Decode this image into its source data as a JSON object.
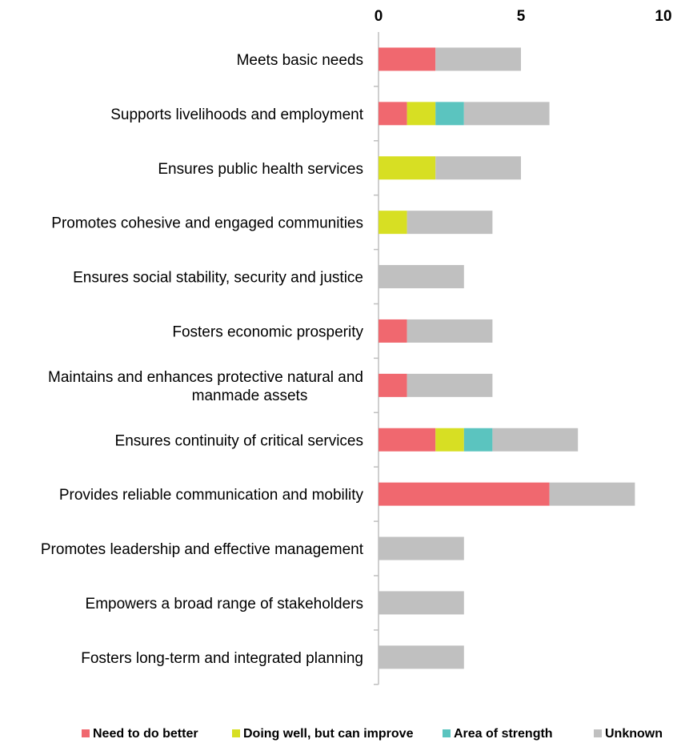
{
  "chart_data": {
    "type": "bar",
    "orientation": "horizontal",
    "stacked": true,
    "categories": [
      [
        "Meets basic needs"
      ],
      [
        "Supports livelihoods and employment"
      ],
      [
        "Ensures public health services"
      ],
      [
        "Promotes cohesive and engaged communities"
      ],
      [
        "Ensures social stability, security and justice"
      ],
      [
        "Fosters economic prosperity"
      ],
      [
        "Maintains and enhances protective natural and",
        "manmade assets"
      ],
      [
        "Ensures continuity of critical services"
      ],
      [
        "Provides reliable communication and mobility"
      ],
      [
        "Promotes leadership and effective management"
      ],
      [
        "Empowers a broad range of stakeholders"
      ],
      [
        "Fosters long-term and integrated planning"
      ]
    ],
    "series": [
      {
        "name": "Need to do better",
        "color": "#f0686f",
        "values": [
          2,
          1,
          0,
          0,
          0,
          1,
          1,
          2,
          6,
          0,
          0,
          0
        ]
      },
      {
        "name": "Doing well, but can improve",
        "color": "#d7df23",
        "values": [
          0,
          1,
          2,
          1,
          0,
          0,
          0,
          1,
          0,
          0,
          0,
          0
        ]
      },
      {
        "name": "Area of strength",
        "color": "#5bc4bf",
        "values": [
          0,
          1,
          0,
          0,
          0,
          0,
          0,
          1,
          0,
          0,
          0,
          0
        ]
      },
      {
        "name": "Unknown",
        "color": "#c0c0c0",
        "values": [
          3,
          3,
          3,
          3,
          3,
          3,
          3,
          3,
          3,
          3,
          3,
          3
        ]
      }
    ],
    "xlim": [
      0,
      10
    ],
    "ticks": [
      0,
      5,
      10
    ],
    "axis_position": "top",
    "grid": false,
    "legend_position": "bottom"
  }
}
